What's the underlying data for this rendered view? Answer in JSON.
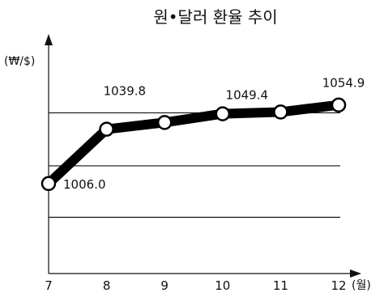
{
  "chart_data": {
    "type": "line",
    "title": "원•달러 환율 추이",
    "ylabel": "(₩/$)",
    "xlabel": "(월)",
    "x": [
      "7",
      "8",
      "9",
      "10",
      "11",
      "12"
    ],
    "series": [
      {
        "values": [
          1006.0,
          1039.8,
          1044.0,
          1049.4,
          1050.5,
          1054.9
        ]
      }
    ],
    "data_labels": [
      {
        "index": 0,
        "text": "1006.0"
      },
      {
        "index": 1,
        "text": "1039.8"
      },
      {
        "index": 3,
        "text": "1049.4"
      },
      {
        "index": 5,
        "text": "1054.9"
      }
    ],
    "gridlines_y": [
      985,
      1017,
      1050
    ],
    "ylim": [
      950,
      1090
    ],
    "yticks_shown": false,
    "grid": true,
    "colors": {
      "line": "#000000",
      "marker_fill": "#ffffff"
    }
  }
}
